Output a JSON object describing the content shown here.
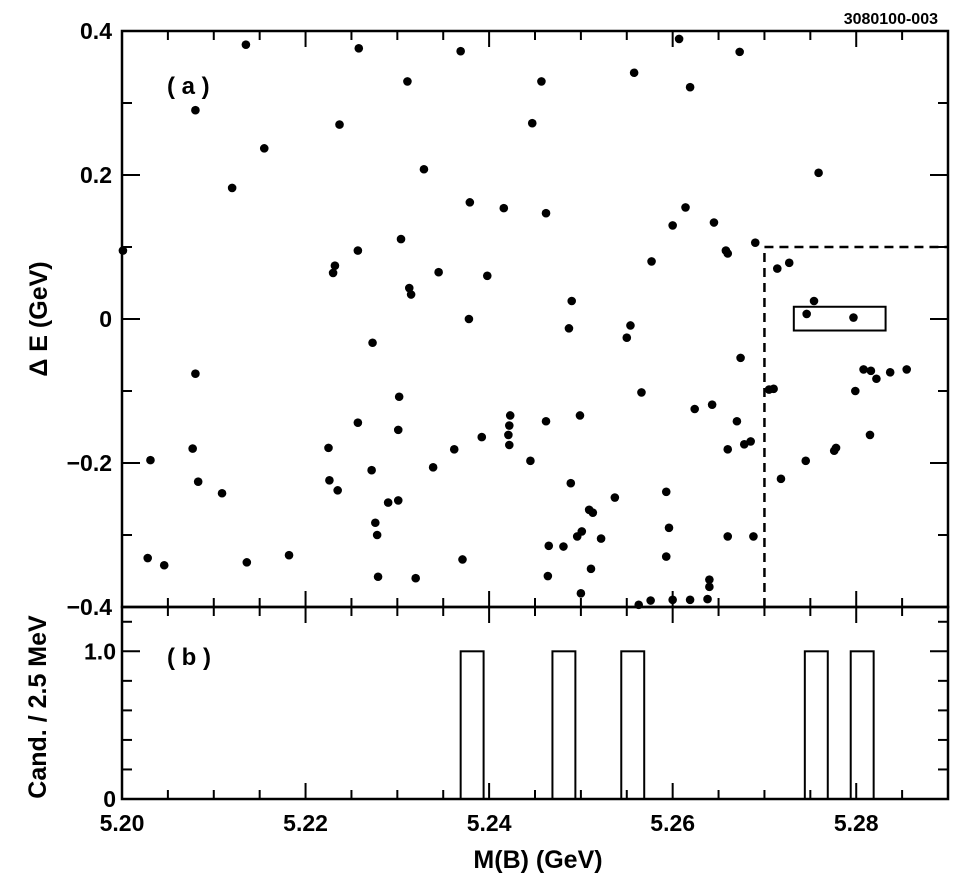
{
  "figure_id": "3080100-003",
  "chart_data": [
    {
      "panel": "a",
      "panel_label": "( a )",
      "type": "scatter",
      "xlabel": "M(B) (GeV)",
      "ylabel": "Δ E  (GeV)",
      "xlim": [
        5.2,
        5.29
      ],
      "ylim": [
        -0.4,
        0.4
      ],
      "x_ticks": [
        "5.20",
        "5.22",
        "5.24",
        "5.26",
        "5.28"
      ],
      "y_ticks": [
        "−0.4",
        "−0.2",
        "0",
        "0.2",
        "0.4"
      ],
      "points": [
        [
          5.2001,
          0.095
        ],
        [
          5.2135,
          0.381
        ],
        [
          5.2258,
          0.376
        ],
        [
          5.2369,
          0.372
        ],
        [
          5.2457,
          0.33
        ],
        [
          5.2607,
          0.389
        ],
        [
          5.2558,
          0.342
        ],
        [
          5.2619,
          0.322
        ],
        [
          5.2673,
          0.371
        ],
        [
          5.208,
          0.29
        ],
        [
          5.2237,
          0.27
        ],
        [
          5.2311,
          0.33
        ],
        [
          5.2447,
          0.272
        ],
        [
          5.2155,
          0.237
        ],
        [
          5.212,
          0.182
        ],
        [
          5.2329,
          0.208
        ],
        [
          5.2759,
          0.203
        ],
        [
          5.2379,
          0.162
        ],
        [
          5.2416,
          0.154
        ],
        [
          5.2462,
          0.147
        ],
        [
          5.2614,
          0.155
        ],
        [
          5.2645,
          0.134
        ],
        [
          5.26,
          0.13
        ],
        [
          5.2257,
          0.095
        ],
        [
          5.2304,
          0.111
        ],
        [
          5.2658,
          0.095
        ],
        [
          5.266,
          0.091
        ],
        [
          5.269,
          0.106
        ],
        [
          5.2232,
          0.074
        ],
        [
          5.223,
          0.064
        ],
        [
          5.2577,
          0.08
        ],
        [
          5.2345,
          0.065
        ],
        [
          5.2398,
          0.06
        ],
        [
          5.2714,
          0.07
        ],
        [
          5.2727,
          0.078
        ],
        [
          5.2313,
          0.043
        ],
        [
          5.2315,
          0.034
        ],
        [
          5.249,
          0.025
        ],
        [
          5.2754,
          0.025
        ],
        [
          5.2378,
          0.0
        ],
        [
          5.2746,
          0.007
        ],
        [
          5.2797,
          0.002
        ],
        [
          5.2554,
          -0.009
        ],
        [
          5.2487,
          -0.013
        ],
        [
          5.255,
          -0.026
        ],
        [
          5.2273,
          -0.033
        ],
        [
          5.2674,
          -0.054
        ],
        [
          5.208,
          -0.076
        ],
        [
          5.2808,
          -0.07
        ],
        [
          5.2816,
          -0.072
        ],
        [
          5.2855,
          -0.07
        ],
        [
          5.2837,
          -0.074
        ],
        [
          5.2822,
          -0.083
        ],
        [
          5.2705,
          -0.098
        ],
        [
          5.271,
          -0.097
        ],
        [
          5.2799,
          -0.1
        ],
        [
          5.2566,
          -0.102
        ],
        [
          5.2302,
          -0.108
        ],
        [
          5.2624,
          -0.125
        ],
        [
          5.2643,
          -0.119
        ],
        [
          5.2423,
          -0.134
        ],
        [
          5.2499,
          -0.134
        ],
        [
          5.267,
          -0.142
        ],
        [
          5.2462,
          -0.142
        ],
        [
          5.2257,
          -0.144
        ],
        [
          5.2422,
          -0.148
        ],
        [
          5.2421,
          -0.161
        ],
        [
          5.2301,
          -0.154
        ],
        [
          5.2392,
          -0.164
        ],
        [
          5.2685,
          -0.17
        ],
        [
          5.2678,
          -0.174
        ],
        [
          5.2815,
          -0.161
        ],
        [
          5.2077,
          -0.18
        ],
        [
          5.2225,
          -0.179
        ],
        [
          5.2422,
          -0.175
        ],
        [
          5.2362,
          -0.181
        ],
        [
          5.2778,
          -0.179
        ],
        [
          5.2776,
          -0.183
        ],
        [
          5.266,
          -0.181
        ],
        [
          5.2031,
          -0.196
        ],
        [
          5.2445,
          -0.197
        ],
        [
          5.2745,
          -0.197
        ],
        [
          5.2339,
          -0.206
        ],
        [
          5.2272,
          -0.21
        ],
        [
          5.2718,
          -0.222
        ],
        [
          5.2083,
          -0.226
        ],
        [
          5.2226,
          -0.224
        ],
        [
          5.2235,
          -0.238
        ],
        [
          5.2489,
          -0.228
        ],
        [
          5.2593,
          -0.24
        ],
        [
          5.2109,
          -0.242
        ],
        [
          5.2301,
          -0.252
        ],
        [
          5.229,
          -0.255
        ],
        [
          5.2537,
          -0.248
        ],
        [
          5.2509,
          -0.265
        ],
        [
          5.2513,
          -0.269
        ],
        [
          5.2276,
          -0.283
        ],
        [
          5.2596,
          -0.29
        ],
        [
          5.2501,
          -0.295
        ],
        [
          5.2522,
          -0.305
        ],
        [
          5.2278,
          -0.3
        ],
        [
          5.2496,
          -0.302
        ],
        [
          5.266,
          -0.302
        ],
        [
          5.2688,
          -0.302
        ],
        [
          5.2028,
          -0.332
        ],
        [
          5.2136,
          -0.338
        ],
        [
          5.2182,
          -0.328
        ],
        [
          5.2465,
          -0.315
        ],
        [
          5.2481,
          -0.316
        ],
        [
          5.2371,
          -0.334
        ],
        [
          5.2593,
          -0.33
        ],
        [
          5.2046,
          -0.342
        ],
        [
          5.2511,
          -0.347
        ],
        [
          5.2279,
          -0.358
        ],
        [
          5.232,
          -0.36
        ],
        [
          5.2464,
          -0.357
        ],
        [
          5.264,
          -0.362
        ],
        [
          5.264,
          -0.372
        ],
        [
          5.25,
          -0.381
        ],
        [
          5.2638,
          -0.389
        ],
        [
          5.2563,
          -0.397
        ],
        [
          5.2576,
          -0.391
        ],
        [
          5.26,
          -0.39
        ],
        [
          5.2619,
          -0.39
        ]
      ],
      "signal_region": {
        "x": [
          5.27,
          5.29
        ],
        "y": [
          -0.4,
          0.1
        ],
        "line_style": "dashed"
      },
      "signal_box": {
        "x": [
          5.2732,
          5.2832
        ],
        "y": [
          -0.016,
          0.017
        ]
      }
    },
    {
      "panel": "b",
      "panel_label": "( b )",
      "type": "bar",
      "xlabel": "M(B) (GeV)",
      "ylabel": "Cand. / 2.5 MeV",
      "xlim": [
        5.2,
        5.29
      ],
      "ylim": [
        0,
        1.3
      ],
      "bin_width": 0.0025,
      "x_ticks": [
        "5.20",
        "5.22",
        "5.24",
        "5.26",
        "5.28"
      ],
      "y_ticks": [
        "0",
        "1.0"
      ],
      "bins": [
        {
          "x_low": 5.2369,
          "count": 1
        },
        {
          "x_low": 5.2469,
          "count": 1
        },
        {
          "x_low": 5.2544,
          "count": 1
        },
        {
          "x_low": 5.2744,
          "count": 1
        },
        {
          "x_low": 5.2794,
          "count": 1
        }
      ]
    }
  ]
}
